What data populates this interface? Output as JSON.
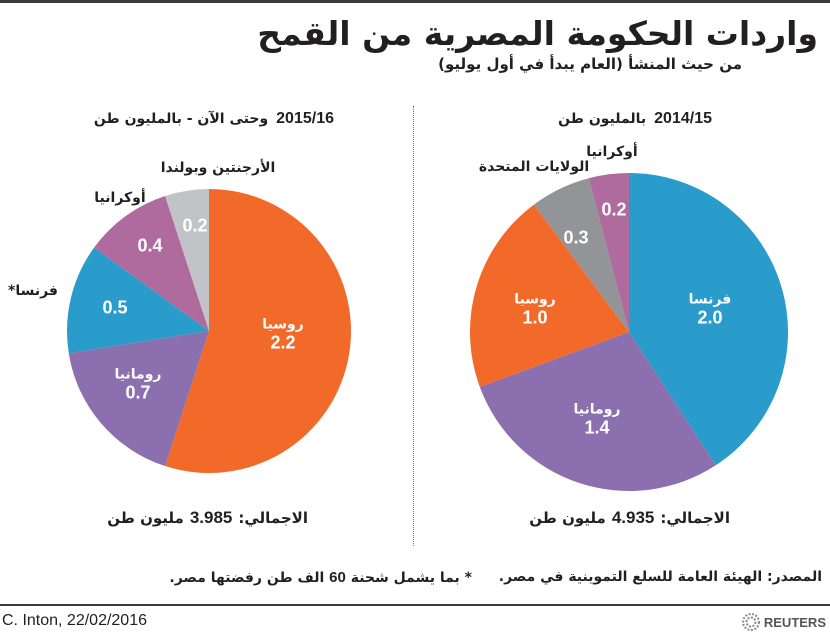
{
  "title": "واردات الحكومة المصرية من القمح",
  "subtitle": "من حيث المنشأ (العام يبدأ في أول يوليو)",
  "colors": {
    "russia": "#f26a2a",
    "france": "#2a9ccb",
    "romania": "#8c6fae",
    "usa": "#929498",
    "argentina_poland": "#c2c3c6",
    "ukraine": "#b06b9e"
  },
  "chart_data": [
    {
      "type": "pie",
      "year": "2014/15",
      "title": "بالمليون طن",
      "start": "12 o'clock, clockwise",
      "slices": [
        {
          "name": "فرنسا",
          "value": 2.0,
          "value_label": "2.0",
          "color": "#2a9ccb",
          "label_pos": "inside"
        },
        {
          "name": "رومانيا",
          "value": 1.4,
          "value_label": "1.4",
          "color": "#8c6fae",
          "label_pos": "inside"
        },
        {
          "name": "روسيا",
          "value": 1.0,
          "value_label": "1.0",
          "color": "#f26a2a",
          "label_pos": "inside"
        },
        {
          "name": "الولايات المتحدة",
          "value": 0.3,
          "value_label": "0.3",
          "color": "#929498",
          "label_pos": "outside"
        },
        {
          "name": "أوكرانيا",
          "value": 0.2,
          "value_label": "0.2",
          "color": "#b06b9e",
          "label_pos": "outside"
        }
      ],
      "total": {
        "label": "الاجمالي:",
        "value": "4.935",
        "unit": "مليون طن"
      }
    },
    {
      "type": "pie",
      "year": "2015/16",
      "title": "وحتى الآن - بالمليون طن",
      "start": "12 o'clock, clockwise",
      "slices": [
        {
          "name": "روسيا",
          "value": 2.2,
          "value_label": "2.2",
          "color": "#f26a2a",
          "label_pos": "inside"
        },
        {
          "name": "رومانيا",
          "value": 0.7,
          "value_label": "0.7",
          "color": "#8c6fae",
          "label_pos": "inside"
        },
        {
          "name": "فرنسا*",
          "value": 0.5,
          "value_label": "0.5",
          "color": "#2a9ccb",
          "label_pos": "outside"
        },
        {
          "name": "أوكرانيا",
          "value": 0.4,
          "value_label": "0.4",
          "color": "#b06b9e",
          "label_pos": "outside"
        },
        {
          "name": "الأرجنتين وبولندا",
          "value": 0.2,
          "value_label": "0.2",
          "color": "#c2c3c6",
          "label_pos": "outside"
        }
      ],
      "total": {
        "label": "الاجمالي:",
        "value": "3.985",
        "unit": "مليون طن"
      }
    }
  ],
  "source": "المصدر: الهيئة العامة للسلع التموينية في مصر.",
  "footnote": {
    "before": "* بما يشمل شحنة",
    "num": "60",
    "after": "الف طن رفضتها مصر."
  },
  "credit": "C. Inton,  22/02/2016",
  "logo": {
    "text": "REUTERS",
    "icon": "reuters-dots-icon"
  }
}
